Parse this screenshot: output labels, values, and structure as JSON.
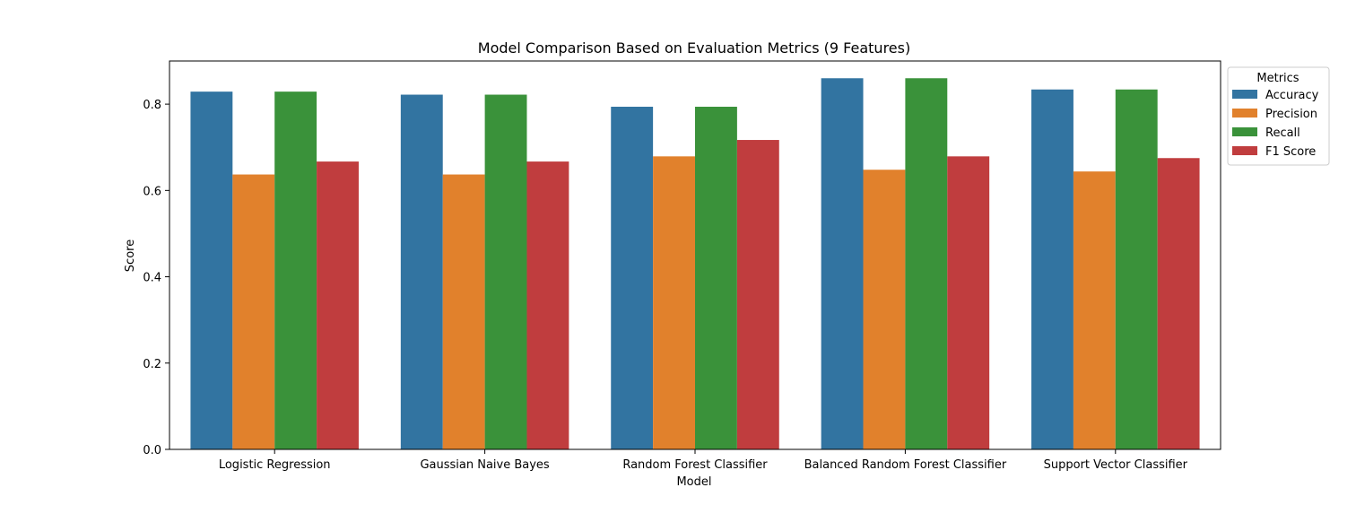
{
  "chart_data": {
    "type": "bar",
    "title": "Model Comparison Based on Evaluation Metrics (9 Features)",
    "xlabel": "Model",
    "ylabel": "Score",
    "ylim": [
      0,
      0.9
    ],
    "yticks": [
      "0.0",
      "0.2",
      "0.4",
      "0.6",
      "0.8"
    ],
    "categories": [
      "Logistic Regression",
      "Gaussian Naive Bayes",
      "Random Forest Classifier",
      "Balanced Random Forest Classifier",
      "Support Vector Classifier"
    ],
    "series": [
      {
        "name": "Accuracy",
        "color": "#3274a1",
        "values": [
          0.829,
          0.822,
          0.794,
          0.86,
          0.834
        ]
      },
      {
        "name": "Precision",
        "color": "#e1812c",
        "values": [
          0.637,
          0.637,
          0.679,
          0.648,
          0.644
        ]
      },
      {
        "name": "Recall",
        "color": "#3a923a",
        "values": [
          0.829,
          0.822,
          0.794,
          0.86,
          0.834
        ]
      },
      {
        "name": "F1 Score",
        "color": "#c03d3e",
        "values": [
          0.667,
          0.667,
          0.717,
          0.679,
          0.675
        ]
      }
    ],
    "legend": {
      "title": "Metrics",
      "placement": "outside-top-right"
    },
    "grid": false
  }
}
